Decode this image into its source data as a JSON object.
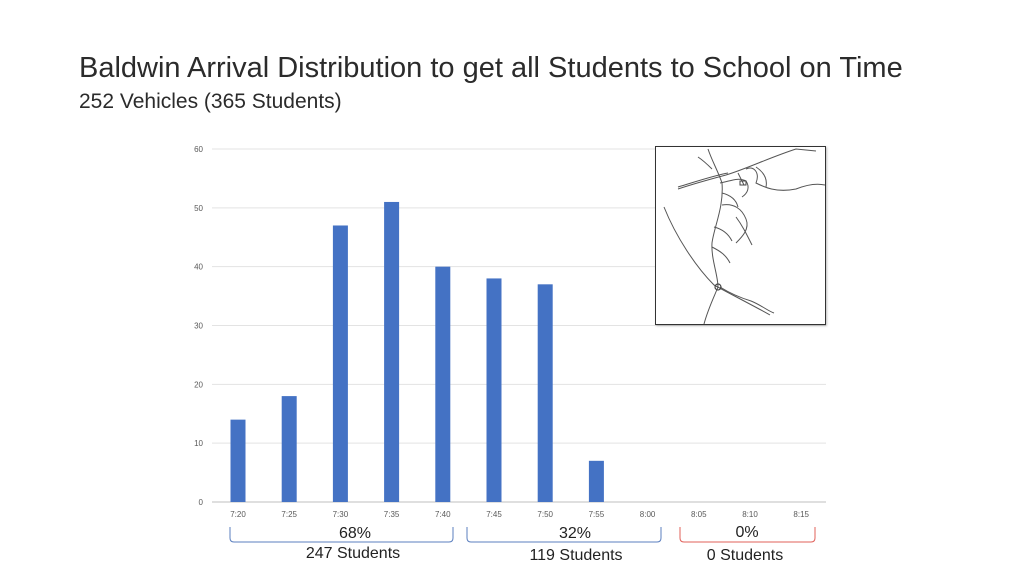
{
  "header": {
    "title": "Baldwin Arrival Distribution to get all Students to School on Time",
    "subtitle": "252 Vehicles (365 Students)"
  },
  "chart_data": {
    "type": "bar",
    "categories": [
      "7:20",
      "7:25",
      "7:30",
      "7:35",
      "7:40",
      "7:45",
      "7:50",
      "7:55",
      "8:00",
      "8:05",
      "8:10",
      "8:15"
    ],
    "values": [
      14,
      18,
      47,
      51,
      40,
      38,
      37,
      7,
      0,
      0,
      0,
      0
    ],
    "yticks": [
      "0",
      "10",
      "20",
      "30",
      "40",
      "50",
      "60"
    ],
    "ylim": [
      0,
      60
    ],
    "grid": true,
    "bar_color": "#4472c4",
    "groups": [
      {
        "percent": "68%",
        "students": "247 Students",
        "color": "#5b7fbf"
      },
      {
        "percent": "32%",
        "students": "119 Students",
        "color": "#5b7fbf"
      },
      {
        "percent": "0%",
        "students": "0 Students",
        "color": "#e0605a"
      }
    ]
  },
  "inset": {
    "icon": "road-map-icon"
  }
}
